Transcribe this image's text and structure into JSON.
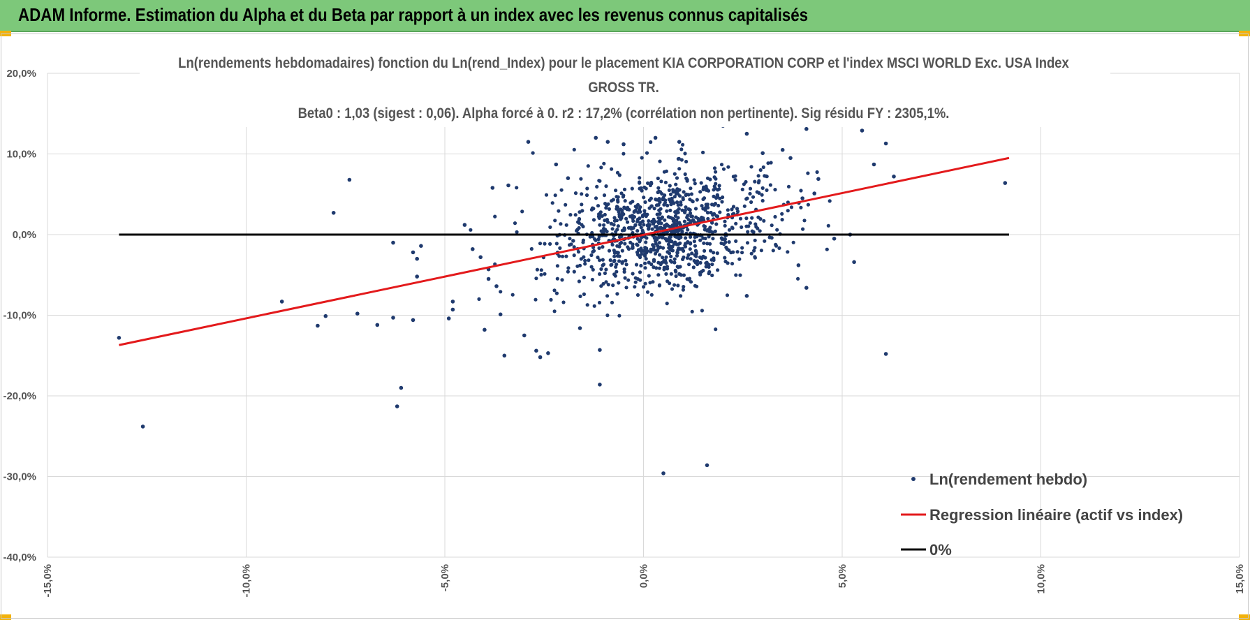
{
  "header": {
    "title": "ADAM Informe. Estimation du Alpha et du Beta par rapport à un index avec les revenus connus capitalisés"
  },
  "colors": {
    "banner": "#7dc87a",
    "accent": "#f2b20c",
    "points": "#1f3a6e",
    "regression": "#e31a1c",
    "zero_line": "#000000",
    "grid": "#d9d9d9"
  },
  "chart_data": {
    "type": "scatter",
    "title": "Ln(rendements hebdomadaires) fonction du Ln(rend_Index) pour le placement KIA CORPORATION CORP et l'index MSCI WORLD Exc. USA Index",
    "title_line2": "GROSS TR.",
    "subtitle": "Beta0 : 1,03 (sigest : 0,06).  Alpha forcé à 0. r2 : 17,2% (corrélation non pertinente). Sig résidu FY : 2305,1%.",
    "xlim": [
      -0.15,
      0.15
    ],
    "ylim": [
      -0.4,
      0.2
    ],
    "x_ticks": [
      "-15,0%",
      "-10,0%",
      "-5,0%",
      "0,0%",
      "5,0%",
      "10,0%",
      "15,0%"
    ],
    "x_tick_values": [
      -0.15,
      -0.1,
      -0.05,
      0.0,
      0.05,
      0.1,
      0.15
    ],
    "y_ticks": [
      "20,0%",
      "10,0%",
      "0,0%",
      "-10,0%",
      "-20,0%",
      "-30,0%",
      "-40,0%"
    ],
    "y_tick_values": [
      0.2,
      0.1,
      0.0,
      -0.1,
      -0.2,
      -0.3,
      -0.4
    ],
    "grid": true,
    "legend_position": "bottom-right",
    "series": [
      {
        "name": "Ln(rendement hebdo)",
        "kind": "scatter",
        "color": "#1f3a6e",
        "cluster": {
          "center_x": 0.005,
          "center_y": 0.005,
          "sd_x": 0.014,
          "sd_y": 0.036,
          "count": 1050
        },
        "points": [
          [
            -0.132,
            -0.128
          ],
          [
            -0.126,
            -0.238
          ],
          [
            -0.091,
            -0.083
          ],
          [
            -0.082,
            -0.113
          ],
          [
            -0.08,
            -0.101
          ],
          [
            -0.078,
            0.027
          ],
          [
            -0.074,
            0.068
          ],
          [
            -0.072,
            -0.098
          ],
          [
            -0.067,
            -0.112
          ],
          [
            -0.063,
            -0.103
          ],
          [
            -0.063,
            -0.01
          ],
          [
            -0.062,
            -0.213
          ],
          [
            -0.061,
            -0.19
          ],
          [
            -0.058,
            -0.106
          ],
          [
            -0.058,
            -0.022
          ],
          [
            -0.057,
            -0.03
          ],
          [
            -0.057,
            -0.052
          ],
          [
            -0.056,
            -0.014
          ],
          [
            -0.049,
            -0.104
          ],
          [
            -0.048,
            -0.083
          ],
          [
            -0.048,
            -0.093
          ],
          [
            -0.045,
            0.012
          ],
          [
            -0.043,
            -0.018
          ],
          [
            -0.041,
            -0.028
          ],
          [
            -0.04,
            -0.118
          ],
          [
            -0.039,
            -0.055
          ],
          [
            -0.039,
            -0.043
          ],
          [
            -0.038,
            0.058
          ],
          [
            -0.037,
            -0.064
          ],
          [
            -0.036,
            -0.099
          ],
          [
            -0.035,
            -0.15
          ],
          [
            -0.034,
            0.061
          ],
          [
            -0.03,
            -0.125
          ],
          [
            -0.029,
            0.115
          ],
          [
            -0.027,
            -0.144
          ],
          [
            -0.026,
            -0.152
          ],
          [
            -0.024,
            -0.147
          ],
          [
            -0.022,
            0.087
          ],
          [
            -0.019,
            0.07
          ],
          [
            -0.016,
            -0.116
          ],
          [
            -0.011,
            -0.186
          ],
          [
            -0.011,
            -0.143
          ],
          [
            -0.012,
            0.12
          ],
          [
            -0.009,
            0.115
          ],
          [
            -0.005,
            0.112
          ],
          [
            0.003,
            0.12
          ],
          [
            0.005,
            -0.296
          ],
          [
            0.009,
            0.115
          ],
          [
            0.016,
            -0.286
          ],
          [
            0.02,
            0.135
          ],
          [
            0.026,
            0.125
          ],
          [
            0.026,
            -0.076
          ],
          [
            0.03,
            0.101
          ],
          [
            0.035,
            0.105
          ],
          [
            0.037,
            0.095
          ],
          [
            0.039,
            -0.038
          ],
          [
            0.04,
            0.045
          ],
          [
            0.041,
            -0.066
          ],
          [
            0.041,
            0.131
          ],
          [
            0.043,
            0.051
          ],
          [
            0.044,
            0.069
          ],
          [
            0.048,
            -0.005
          ],
          [
            0.052,
            0.0
          ],
          [
            0.053,
            -0.034
          ],
          [
            0.055,
            0.129
          ],
          [
            0.058,
            0.087
          ],
          [
            0.061,
            0.113
          ],
          [
            0.061,
            -0.148
          ],
          [
            0.063,
            0.072
          ],
          [
            0.091,
            0.064
          ]
        ]
      },
      {
        "name": "Regression linéaire (actif vs index)",
        "kind": "line",
        "color": "#e31a1c",
        "x": [
          -0.132,
          0.092
        ],
        "y": [
          -0.137,
          0.095
        ]
      },
      {
        "name": "0%",
        "kind": "line",
        "color": "#000000",
        "x": [
          -0.132,
          0.092
        ],
        "y": [
          0.0,
          0.0
        ]
      }
    ]
  }
}
